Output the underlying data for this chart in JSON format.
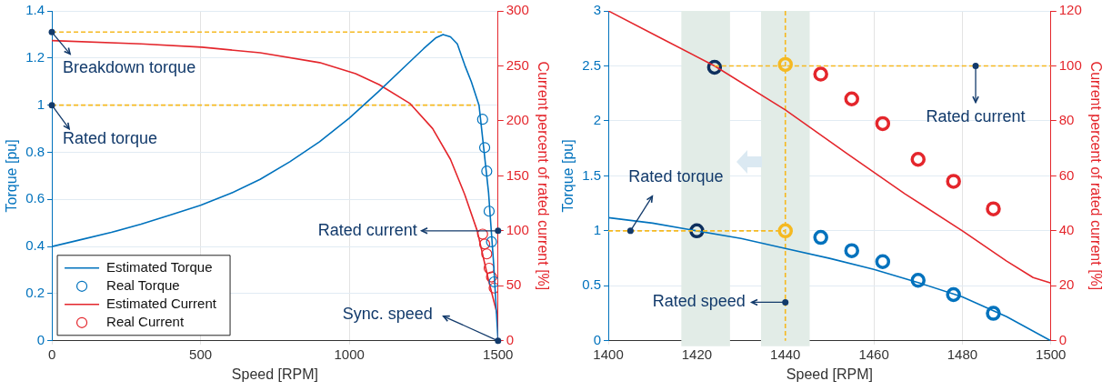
{
  "chart_data": [
    {
      "type": "line",
      "xlabel": "Speed [RPM]",
      "ylabel": "Torque [pu]",
      "y2label": "Current percent of rated current [%]",
      "xlim": [
        0,
        1500
      ],
      "xticks": [
        0,
        500,
        1000,
        1500
      ],
      "ylim": [
        0,
        1.4
      ],
      "yticks": [
        0,
        0.2,
        0.4,
        0.6,
        0.8,
        1,
        1.2,
        1.4
      ],
      "y2lim": [
        0,
        300
      ],
      "y2ticks": [
        0,
        50,
        100,
        150,
        200,
        250,
        300
      ],
      "grid": true,
      "legend": "bottom left",
      "series": [
        {
          "type": "line",
          "name": "Estimated Torque",
          "color": "#0072bd",
          "marker": "none",
          "line_style": "solid",
          "x": [
            0,
            100,
            200,
            300,
            400,
            500,
            600,
            700,
            800,
            900,
            1000,
            1100,
            1200,
            1250,
            1290,
            1315,
            1340,
            1363,
            1388,
            1410,
            1436,
            1468,
            1485,
            1500
          ],
          "values": [
            0.4,
            0.43,
            0.46,
            0.495,
            0.535,
            0.575,
            0.625,
            0.685,
            0.76,
            0.845,
            0.945,
            1.06,
            1.18,
            1.24,
            1.285,
            1.3,
            1.29,
            1.26,
            1.17,
            1.1,
            1.0,
            0.63,
            0.33,
            0
          ]
        },
        {
          "type": "scatter",
          "name": "Real Torque",
          "color": "#0072bd",
          "marker": "circle",
          "x": [
            1448,
            1455,
            1462,
            1470,
            1478,
            1487
          ],
          "values": [
            0.94,
            0.82,
            0.72,
            0.55,
            0.42,
            0.25
          ]
        },
        {
          "type": "line",
          "name": "Estimated Current",
          "color": "#e4262c",
          "marker": "none",
          "line_style": "solid",
          "axis": "y2",
          "x": [
            0,
            300,
            504,
            700,
            900,
            1021,
            1100,
            1203,
            1280,
            1340,
            1388,
            1430,
            1468,
            1500
          ],
          "values": [
            273,
            270,
            267,
            262,
            253,
            243,
            233,
            216,
            193,
            165,
            133,
            100,
            55,
            21
          ]
        },
        {
          "type": "scatter",
          "name": "Real Current",
          "color": "#e4262c",
          "marker": "circle",
          "axis": "y2",
          "x": [
            1448,
            1455,
            1462,
            1470,
            1478,
            1487
          ],
          "values": [
            97,
            88,
            79,
            66,
            58,
            48
          ]
        },
        {
          "type": "line",
          "color": "#f5b921",
          "line_style": "dashed",
          "x": [
            0,
            1318
          ],
          "values": [
            1.31,
            1.31
          ]
        },
        {
          "type": "line",
          "color": "#f5b921",
          "line_style": "dashed",
          "x": [
            0,
            1425
          ],
          "values": [
            1,
            1
          ]
        }
      ],
      "annotations": [
        {
          "text": "Breakdown torque",
          "x": 0,
          "y": 1.31
        },
        {
          "text": "Rated torque",
          "x": 0,
          "y": 1
        },
        {
          "text": "Rated current",
          "x": 1500,
          "y": 0.467
        },
        {
          "text": "Sync. speed",
          "x": 1500,
          "y": 0
        }
      ]
    },
    {
      "type": "line",
      "xlabel": "Speed [RPM]",
      "ylabel": "Torque [pu]",
      "y2label": "Current percent of rated current [%]",
      "xlim": [
        1400,
        1500
      ],
      "xticks": [
        1400,
        1420,
        1440,
        1460,
        1480,
        1500
      ],
      "ylim": [
        0,
        3
      ],
      "yticks": [
        0,
        0.5,
        1,
        1.5,
        2,
        2.5,
        3
      ],
      "y2lim": [
        0,
        120
      ],
      "y2ticks": [
        0,
        20,
        40,
        60,
        80,
        100,
        120
      ],
      "grid": true,
      "bands": [
        {
          "axis": "x",
          "from": 1416.5,
          "to": 1427.5,
          "color": "#e2ece7"
        },
        {
          "axis": "x",
          "from": 1434.5,
          "to": 1445.5,
          "color": "#e2ece7"
        }
      ],
      "ref_lines": [
        {
          "axis": "x",
          "value": 1440,
          "color": "#f5b921",
          "line_style": "dashed"
        }
      ],
      "series": [
        {
          "type": "line",
          "color": "#f5b921",
          "marker": "none",
          "line_style": "dashed",
          "x": [
            1400,
            1440
          ],
          "values": [
            1,
            1
          ]
        },
        {
          "type": "line",
          "color": "#f5b921",
          "marker": "none",
          "line_style": "dashed",
          "axis": "y2",
          "x": [
            1424,
            1500
          ],
          "values": [
            100,
            100
          ]
        },
        {
          "type": "line",
          "color": "#0072bd",
          "marker": "none",
          "line_style": "solid",
          "x": [
            1400,
            1410,
            1420,
            1430,
            1440,
            1450,
            1460,
            1470,
            1480,
            1490,
            1500
          ],
          "values": [
            1.12,
            1.07,
            1.0,
            0.93,
            0.84,
            0.75,
            0.65,
            0.53,
            0.4,
            0.22,
            0
          ]
        },
        {
          "type": "scatter",
          "color": "#0072bd",
          "marker": "circle",
          "x": [
            1448,
            1455,
            1462,
            1470,
            1478,
            1487
          ],
          "values": [
            0.94,
            0.82,
            0.72,
            0.55,
            0.42,
            0.25
          ]
        },
        {
          "type": "line",
          "color": "#e4262c",
          "marker": "none",
          "line_style": "solid",
          "axis": "y2",
          "x": [
            1400,
            1412,
            1424,
            1440,
            1454,
            1467,
            1480,
            1490,
            1496,
            1500
          ],
          "values": [
            120,
            110,
            100,
            84,
            68,
            53.5,
            40,
            29,
            23,
            21
          ]
        },
        {
          "type": "scatter",
          "color": "#e4262c",
          "marker": "circle",
          "axis": "y2",
          "x": [
            1448,
            1455,
            1462,
            1470,
            1478,
            1487
          ],
          "values": [
            97,
            88,
            79,
            66,
            58,
            48
          ]
        },
        {
          "type": "scatter",
          "color": "#0d2f5e",
          "marker": "circle",
          "x": [
            1420
          ],
          "values": [
            1
          ]
        },
        {
          "type": "scatter",
          "color": "#0d2f5e",
          "marker": "circle",
          "axis": "y2",
          "x": [
            1424
          ],
          "values": [
            99.5
          ]
        },
        {
          "type": "scatter",
          "color": "#f5b921",
          "marker": "circle",
          "x": [
            1440
          ],
          "values": [
            1
          ]
        },
        {
          "type": "scatter",
          "color": "#f5b921",
          "marker": "circle",
          "axis": "y2",
          "x": [
            1440
          ],
          "values": [
            100.5
          ]
        }
      ],
      "annotations": [
        {
          "text": "Rated current",
          "x": 1483,
          "y": 2.5
        },
        {
          "text": "Rated torque",
          "x": 1405,
          "y": 1
        },
        {
          "text": "Rated speed",
          "x": 1440,
          "y": 0.35
        }
      ]
    }
  ]
}
